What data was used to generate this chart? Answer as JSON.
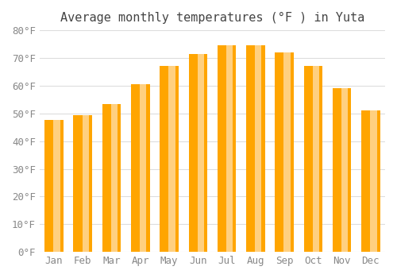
{
  "title": "Average monthly temperatures (°F ) in Yuta",
  "months": [
    "Jan",
    "Feb",
    "Mar",
    "Apr",
    "May",
    "Jun",
    "Jul",
    "Aug",
    "Sep",
    "Oct",
    "Nov",
    "Dec"
  ],
  "values": [
    47.5,
    49.5,
    53.5,
    60.5,
    67.0,
    71.5,
    74.5,
    74.5,
    72.0,
    67.0,
    59.0,
    51.0
  ],
  "bar_color_main": "#FFA500",
  "bar_color_light": "#FFD080",
  "ylim": [
    0,
    80
  ],
  "ytick_step": 10,
  "background_color": "#ffffff",
  "grid_color": "#dddddd",
  "title_fontsize": 11,
  "tick_fontsize": 9
}
